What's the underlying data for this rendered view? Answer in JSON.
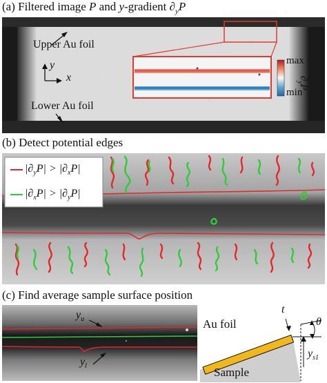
{
  "panel_a": {
    "title": "(a) Filtered image P and y-gradient ∂yP",
    "upper_foil": "Upper Au foil",
    "lower_foil": "Lower Au foil",
    "axis_y": "y",
    "axis_x": "x",
    "colorbar_max": "max",
    "colorbar_min": "min",
    "colorbar_label": "∂yP"
  },
  "panel_b": {
    "title": "(b) Detect potential edges",
    "legend": [
      {
        "text": "|∂yP| > |∂xP|",
        "color": "#e8262a"
      },
      {
        "text": "|∂xP| > |∂yP|",
        "color": "#2ecc3a"
      }
    ]
  },
  "panel_c": {
    "title": "(c) Find average sample surface position",
    "yu_label": "yu",
    "yl_label": "yl",
    "au_foil": "Au foil",
    "sample": "Sample",
    "t_label": "t",
    "theta_label": "θ",
    "ys1_label": "ys1",
    "foil_color": "#f2b71a"
  }
}
